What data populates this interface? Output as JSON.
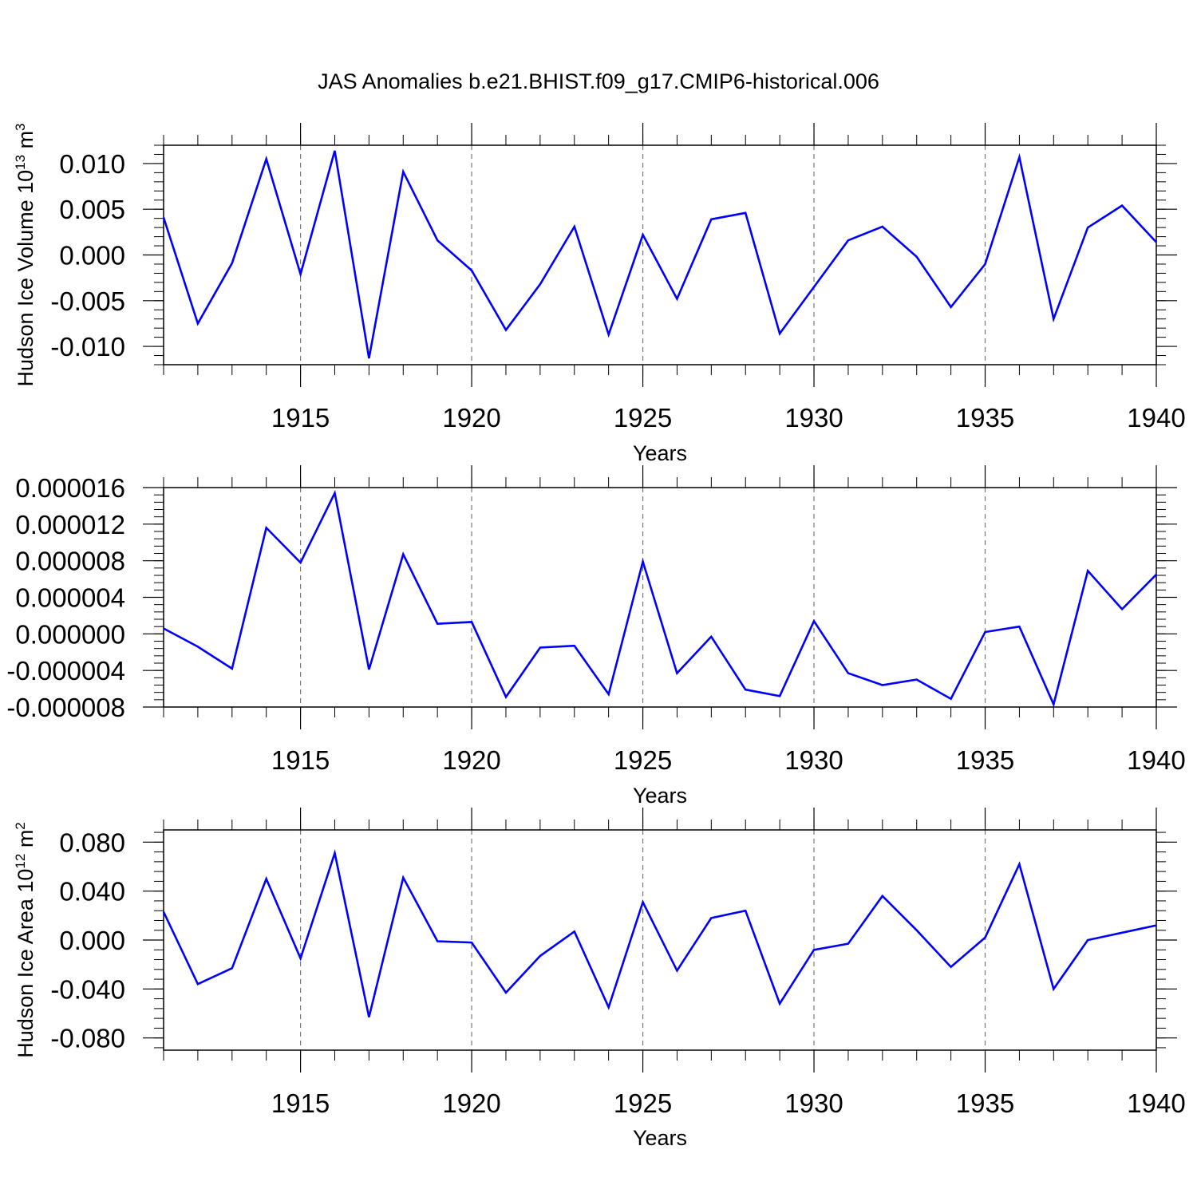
{
  "title": "JAS Anomalies b.e21.BHIST.f09_g17.CMIP6-historical.006",
  "chart_data": [
    {
      "type": "line",
      "name": "ice-volume",
      "ylabel_main": "Hudson Ice Volume 10",
      "ylabel_exp": "13",
      "ylabel_unit": " m",
      "ylabel_unit_exp": "3",
      "xlabel": "Years",
      "xlim": [
        1911,
        1940
      ],
      "ylim": [
        -0.012,
        0.012
      ],
      "x_ticks": [
        1915,
        1920,
        1925,
        1930,
        1935,
        1940
      ],
      "x_tick_labels": [
        "1915",
        "1920",
        "1925",
        "1930",
        "1935",
        "1940"
      ],
      "y_ticks": [
        0.01,
        0.005,
        0.0,
        -0.005,
        -0.01
      ],
      "y_tick_labels": [
        "0.010",
        "0.005",
        "0.000",
        "-0.005",
        "-0.010"
      ],
      "line_color": "#0000ff",
      "x": [
        1911,
        1912,
        1913,
        1914,
        1915,
        1916,
        1917,
        1918,
        1919,
        1920,
        1921,
        1922,
        1923,
        1924,
        1925,
        1926,
        1927,
        1928,
        1929,
        1930,
        1931,
        1932,
        1933,
        1934,
        1935,
        1936,
        1937,
        1938,
        1939,
        1940
      ],
      "values": [
        0.0041,
        -0.0075,
        -0.0009,
        0.0105,
        -0.0021,
        0.0114,
        -0.0113,
        0.0091,
        0.0016,
        -0.0017,
        -0.0082,
        -0.0032,
        0.0031,
        -0.0087,
        0.0022,
        -0.0048,
        0.0039,
        0.0046,
        -0.0086,
        -0.0035,
        0.0016,
        0.0031,
        -0.0002,
        -0.0057,
        -0.001,
        0.0107,
        -0.007,
        0.003,
        0.0054,
        0.0014
      ]
    },
    {
      "type": "line",
      "name": "ice-thickness",
      "ylabel_main": "",
      "xlabel": "Years",
      "xlim": [
        1911,
        1940
      ],
      "ylim": [
        -8e-06,
        1.6e-05
      ],
      "x_ticks": [
        1915,
        1920,
        1925,
        1930,
        1935,
        1940
      ],
      "x_tick_labels": [
        "1915",
        "1920",
        "1925",
        "1930",
        "1935",
        "1940"
      ],
      "y_ticks": [
        1.6e-05,
        1.2e-05,
        8e-06,
        4e-06,
        0.0,
        -4e-06,
        -8e-06
      ],
      "y_tick_labels": [
        "0.000016",
        "0.000012",
        "0.000008",
        "0.000004",
        "0.000000",
        "-0.000004",
        "-0.000008"
      ],
      "line_color": "#0000ff",
      "x": [
        1911,
        1912,
        1913,
        1914,
        1915,
        1916,
        1917,
        1918,
        1919,
        1920,
        1921,
        1922,
        1923,
        1924,
        1925,
        1926,
        1927,
        1928,
        1929,
        1930,
        1931,
        1932,
        1933,
        1934,
        1935,
        1936,
        1937,
        1938,
        1939,
        1940
      ],
      "values": [
        6e-07,
        -1.4e-06,
        -3.8e-06,
        1.16e-05,
        7.8e-06,
        1.54e-05,
        -3.9e-06,
        8.7e-06,
        1.1e-06,
        1.3e-06,
        -6.9e-06,
        -1.5e-06,
        -1.3e-06,
        -6.6e-06,
        7.9e-06,
        -4.3e-06,
        -3e-07,
        -6.1e-06,
        -6.8e-06,
        1.4e-06,
        -4.3e-06,
        -5.6e-06,
        -5e-06,
        -7.1e-06,
        2e-07,
        8e-07,
        -7.7e-06,
        6.9e-06,
        2.7e-06,
        6.5e-06
      ]
    },
    {
      "type": "line",
      "name": "ice-area",
      "ylabel_main": "Hudson Ice Area 10",
      "ylabel_exp": "12",
      "ylabel_unit": " m",
      "ylabel_unit_exp": "2",
      "xlabel": "Years",
      "xlim": [
        1911,
        1940
      ],
      "ylim": [
        -0.09,
        0.09
      ],
      "x_ticks": [
        1915,
        1920,
        1925,
        1930,
        1935,
        1940
      ],
      "x_tick_labels": [
        "1915",
        "1920",
        "1925",
        "1930",
        "1935",
        "1940"
      ],
      "y_ticks": [
        0.08,
        0.04,
        0.0,
        -0.04,
        -0.08
      ],
      "y_tick_labels": [
        "0.080",
        "0.040",
        "0.000",
        "-0.040",
        "-0.080"
      ],
      "line_color": "#0000ff",
      "x": [
        1911,
        1912,
        1913,
        1914,
        1915,
        1916,
        1917,
        1918,
        1919,
        1920,
        1921,
        1922,
        1923,
        1924,
        1925,
        1926,
        1927,
        1928,
        1929,
        1930,
        1931,
        1932,
        1933,
        1934,
        1935,
        1936,
        1937,
        1938,
        1939,
        1940
      ],
      "values": [
        0.023,
        -0.036,
        -0.023,
        0.05,
        -0.015,
        0.071,
        -0.063,
        0.051,
        -0.001,
        -0.002,
        -0.043,
        -0.013,
        0.007,
        -0.055,
        0.031,
        -0.025,
        0.018,
        0.024,
        -0.052,
        -0.008,
        -0.003,
        0.036,
        0.008,
        -0.022,
        0.002,
        0.062,
        -0.04,
        0.0,
        0.006,
        0.012
      ]
    }
  ]
}
